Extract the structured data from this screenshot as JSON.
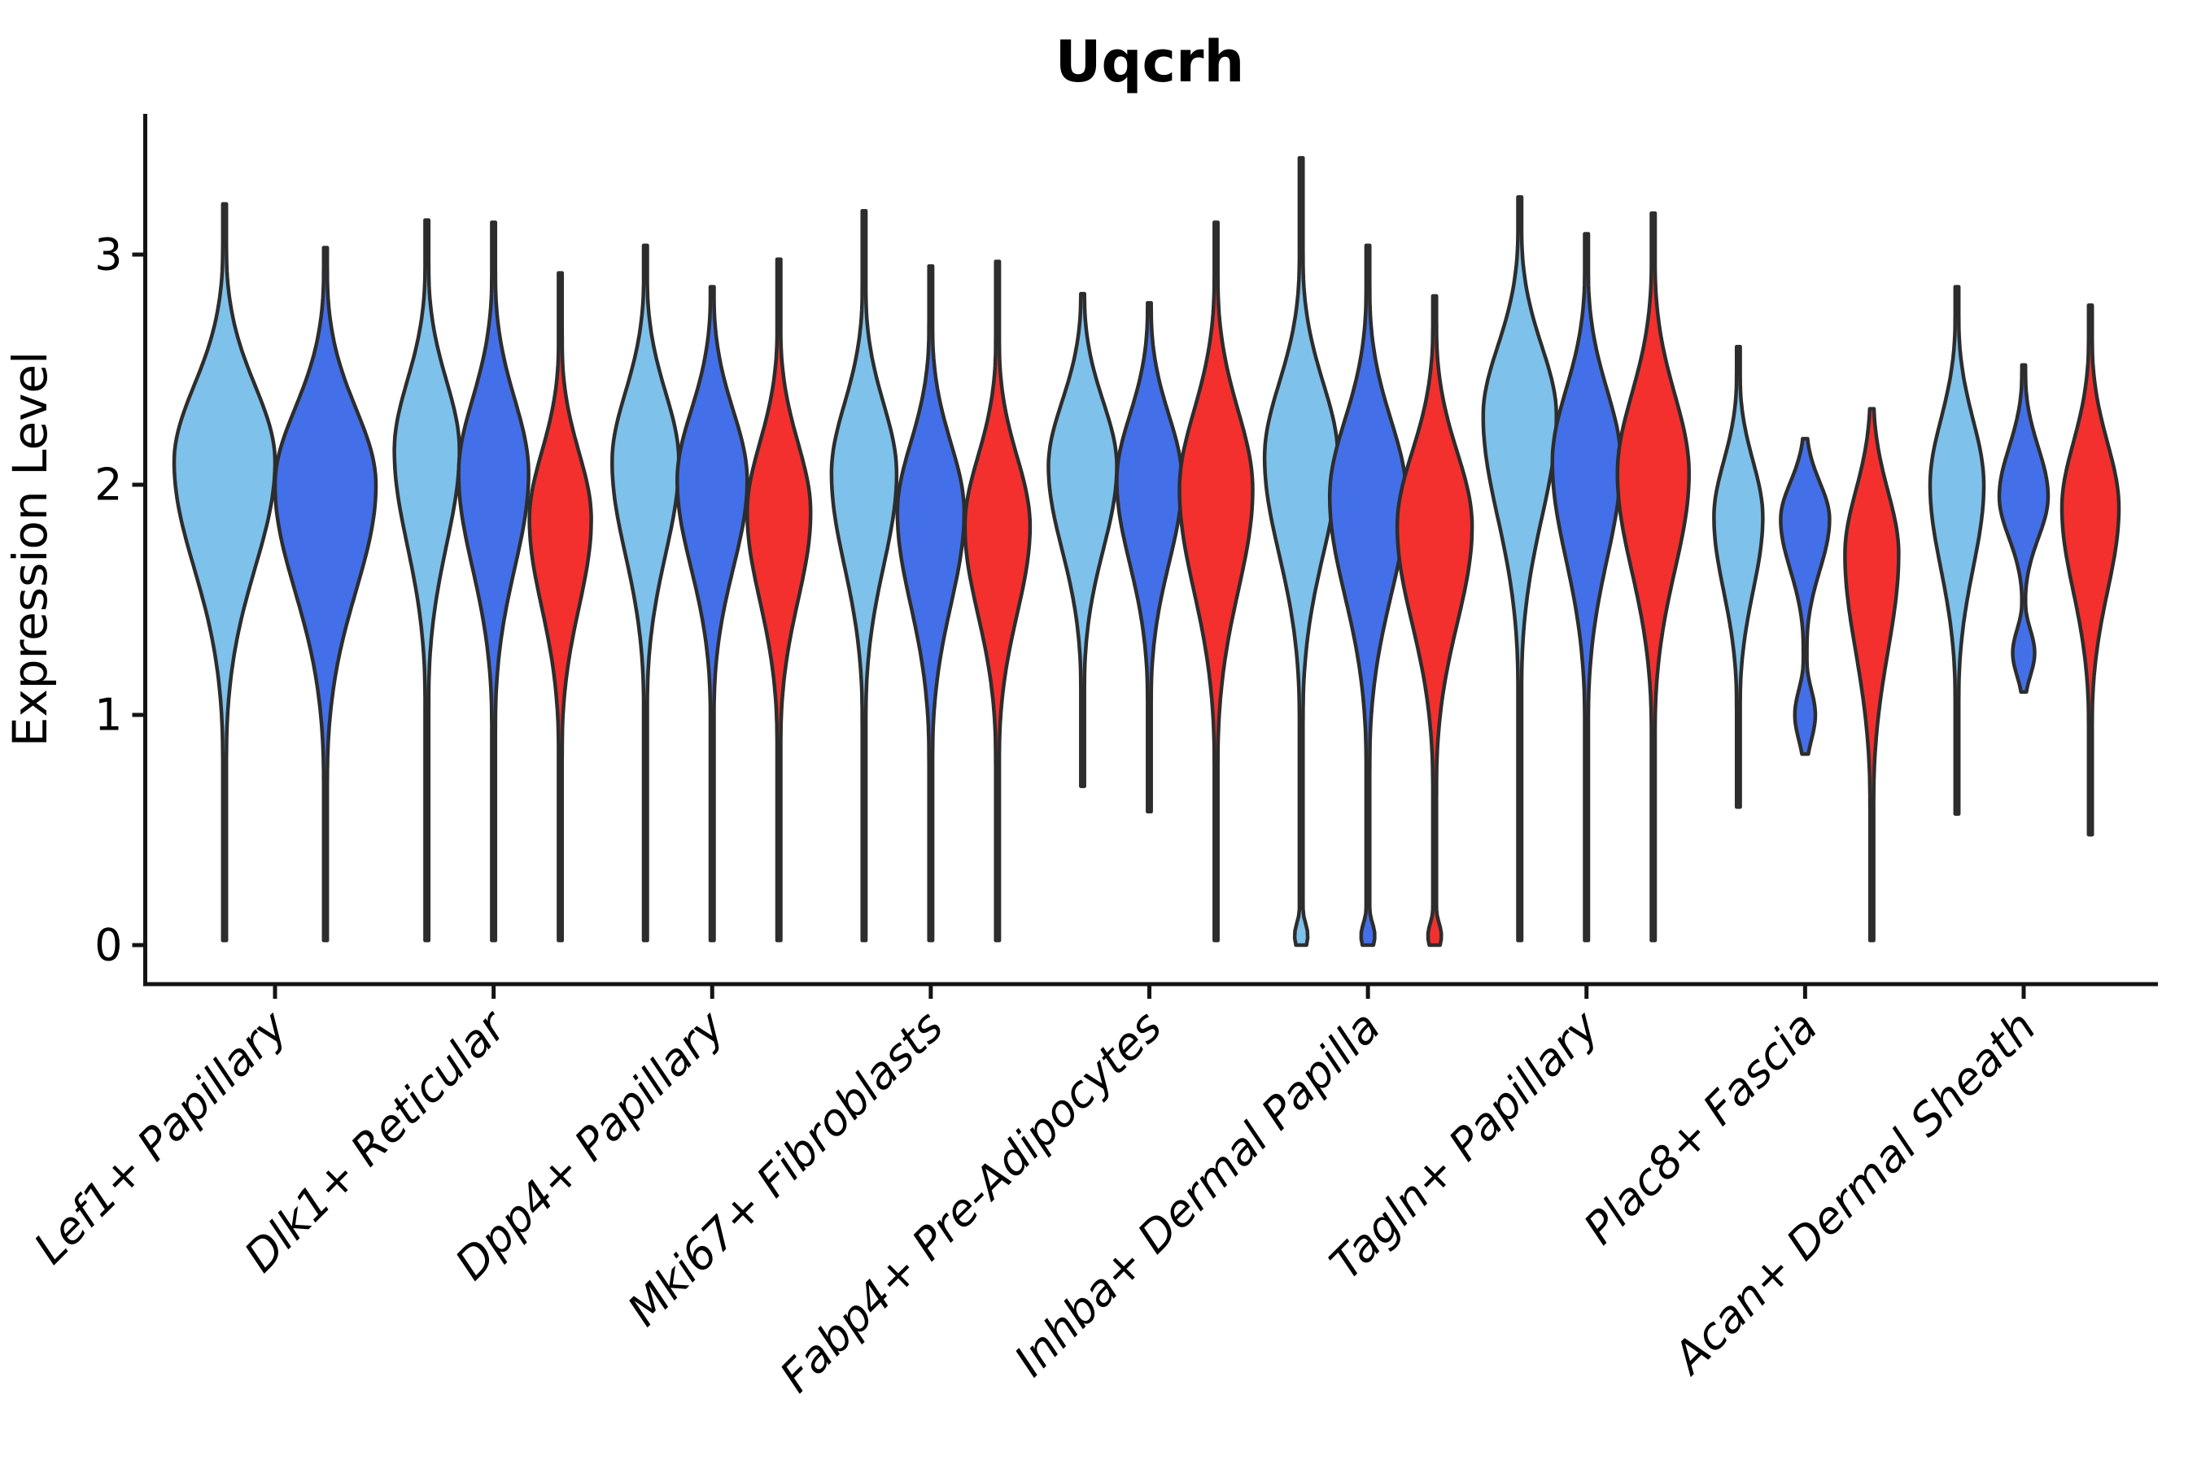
{
  "title": "Uqcrh",
  "chart_data": {
    "type": "violin",
    "title": "Uqcrh",
    "xlabel": "",
    "ylabel": "Expression Level",
    "ylim": [
      -0.17,
      3.61
    ],
    "yticks": [
      0,
      1,
      2,
      3
    ],
    "grid": false,
    "legend_position": "none",
    "x_tick_label_rotation_deg": 45,
    "x_tick_label_style": "italic",
    "categories": [
      "Lef1+ Papillary",
      "Dlk1+ Reticular",
      "Dpp4+ Papillary",
      "Mki67+ Fibroblasts",
      "Fabp4+ Pre-Adipocytes",
      "Inhba+ Dermal Papilla",
      "Tagln+ Papillary",
      "Plac8+ Fascia",
      "Acan+ Dermal Sheath"
    ],
    "series": [
      {
        "id": "series-1",
        "color": "#7EC1EB"
      },
      {
        "id": "series-2",
        "color": "#4370E8"
      },
      {
        "id": "series-3",
        "color": "#F3302E"
      }
    ],
    "edge_color": "#2D2D2D",
    "axis_color": "#141414",
    "violins": [
      {
        "cat": 0,
        "series": 0,
        "offset": -62,
        "halfwidth": 62,
        "min": 0.02,
        "max": 3.22,
        "peak": 2.1,
        "spread_up": 0.33,
        "spread_down": 0.46
      },
      {
        "cat": 0,
        "series": 1,
        "offset": 62,
        "halfwidth": 62,
        "min": 0.02,
        "max": 3.03,
        "peak": 2.0,
        "spread_up": 0.33,
        "spread_down": 0.46
      },
      {
        "cat": 1,
        "series": 0,
        "offset": -82,
        "halfwidth": 40,
        "min": 0.02,
        "max": 3.15,
        "peak": 2.15,
        "spread_up": 0.3,
        "spread_down": 0.41
      },
      {
        "cat": 1,
        "series": 1,
        "offset": 0,
        "halfwidth": 43,
        "min": 0.02,
        "max": 3.14,
        "peak": 2.05,
        "spread_up": 0.32,
        "spread_down": 0.41
      },
      {
        "cat": 1,
        "series": 2,
        "offset": 82,
        "halfwidth": 38,
        "min": 0.02,
        "max": 2.92,
        "peak": 1.85,
        "spread_up": 0.29,
        "spread_down": 0.38
      },
      {
        "cat": 2,
        "series": 0,
        "offset": -82,
        "halfwidth": 41,
        "min": 0.02,
        "max": 3.04,
        "peak": 2.1,
        "spread_up": 0.3,
        "spread_down": 0.4
      },
      {
        "cat": 2,
        "series": 1,
        "offset": 0,
        "halfwidth": 43,
        "min": 0.02,
        "max": 2.86,
        "peak": 2.02,
        "spread_up": 0.3,
        "spread_down": 0.38
      },
      {
        "cat": 2,
        "series": 2,
        "offset": 82,
        "halfwidth": 39,
        "min": 0.02,
        "max": 2.98,
        "peak": 1.88,
        "spread_up": 0.3,
        "spread_down": 0.38
      },
      {
        "cat": 3,
        "series": 0,
        "offset": -82,
        "halfwidth": 40,
        "min": 0.02,
        "max": 3.19,
        "peak": 2.05,
        "spread_up": 0.3,
        "spread_down": 0.4
      },
      {
        "cat": 3,
        "series": 1,
        "offset": 0,
        "halfwidth": 41,
        "min": 0.02,
        "max": 2.95,
        "peak": 1.88,
        "spread_up": 0.3,
        "spread_down": 0.4
      },
      {
        "cat": 3,
        "series": 2,
        "offset": 82,
        "halfwidth": 40,
        "min": 0.02,
        "max": 2.97,
        "peak": 1.82,
        "spread_up": 0.3,
        "spread_down": 0.38
      },
      {
        "cat": 4,
        "series": 0,
        "offset": -82,
        "halfwidth": 42,
        "min": 0.69,
        "max": 2.83,
        "peak": 2.08,
        "spread_up": 0.28,
        "spread_down": 0.36
      },
      {
        "cat": 4,
        "series": 1,
        "offset": 0,
        "halfwidth": 40,
        "min": 0.58,
        "max": 2.79,
        "peak": 2.02,
        "spread_up": 0.28,
        "spread_down": 0.36
      },
      {
        "cat": 4,
        "series": 2,
        "offset": 82,
        "halfwidth": 45,
        "min": 0.02,
        "max": 3.14,
        "peak": 1.98,
        "spread_up": 0.34,
        "spread_down": 0.44
      },
      {
        "cat": 5,
        "series": 0,
        "offset": -82,
        "halfwidth": 45,
        "min": 0.0,
        "max": 3.42,
        "peak": 2.12,
        "spread_up": 0.32,
        "spread_down": 0.42,
        "bump": [
          0.04,
          0.06,
          0.18
        ]
      },
      {
        "cat": 5,
        "series": 1,
        "offset": 0,
        "halfwidth": 47,
        "min": 0.0,
        "max": 3.04,
        "peak": 1.95,
        "spread_up": 0.33,
        "spread_down": 0.43,
        "bump": [
          0.04,
          0.06,
          0.18
        ]
      },
      {
        "cat": 5,
        "series": 2,
        "offset": 82,
        "halfwidth": 46,
        "min": 0.0,
        "max": 2.82,
        "peak": 1.82,
        "spread_up": 0.32,
        "spread_down": 0.42,
        "bump": [
          0.04,
          0.06,
          0.18
        ]
      },
      {
        "cat": 6,
        "series": 0,
        "offset": -82,
        "halfwidth": 45,
        "min": 0.02,
        "max": 3.25,
        "peak": 2.3,
        "spread_up": 0.3,
        "spread_down": 0.44
      },
      {
        "cat": 6,
        "series": 1,
        "offset": 0,
        "halfwidth": 42,
        "min": 0.02,
        "max": 3.09,
        "peak": 2.1,
        "spread_up": 0.31,
        "spread_down": 0.42
      },
      {
        "cat": 6,
        "series": 2,
        "offset": 82,
        "halfwidth": 44,
        "min": 0.02,
        "max": 3.18,
        "peak": 2.05,
        "spread_up": 0.34,
        "spread_down": 0.42
      },
      {
        "cat": 7,
        "series": 0,
        "offset": -82,
        "halfwidth": 30,
        "min": 0.6,
        "max": 2.6,
        "peak": 1.86,
        "spread_up": 0.24,
        "spread_down": 0.32
      },
      {
        "cat": 7,
        "series": 1,
        "offset": 0,
        "halfwidth": 30,
        "min": 0.83,
        "max": 2.2,
        "peak": 1.85,
        "spread_up": 0.16,
        "spread_down": 0.22,
        "bump": [
          1.0,
          0.11,
          0.42
        ]
      },
      {
        "cat": 7,
        "series": 2,
        "offset": 82,
        "halfwidth": 33,
        "min": 0.02,
        "max": 2.33,
        "peak": 1.7,
        "spread_up": 0.27,
        "spread_down": 0.42
      },
      {
        "cat": 8,
        "series": 0,
        "offset": -82,
        "halfwidth": 33,
        "min": 0.57,
        "max": 2.86,
        "peak": 2.0,
        "spread_up": 0.28,
        "spread_down": 0.36
      },
      {
        "cat": 8,
        "series": 1,
        "offset": 0,
        "halfwidth": 30,
        "min": 1.1,
        "max": 2.52,
        "peak": 1.95,
        "spread_up": 0.21,
        "spread_down": 0.18,
        "bump": [
          1.27,
          0.1,
          0.45
        ]
      },
      {
        "cat": 8,
        "series": 2,
        "offset": 82,
        "halfwidth": 35,
        "min": 0.48,
        "max": 2.78,
        "peak": 1.9,
        "spread_up": 0.28,
        "spread_down": 0.36
      }
    ]
  }
}
